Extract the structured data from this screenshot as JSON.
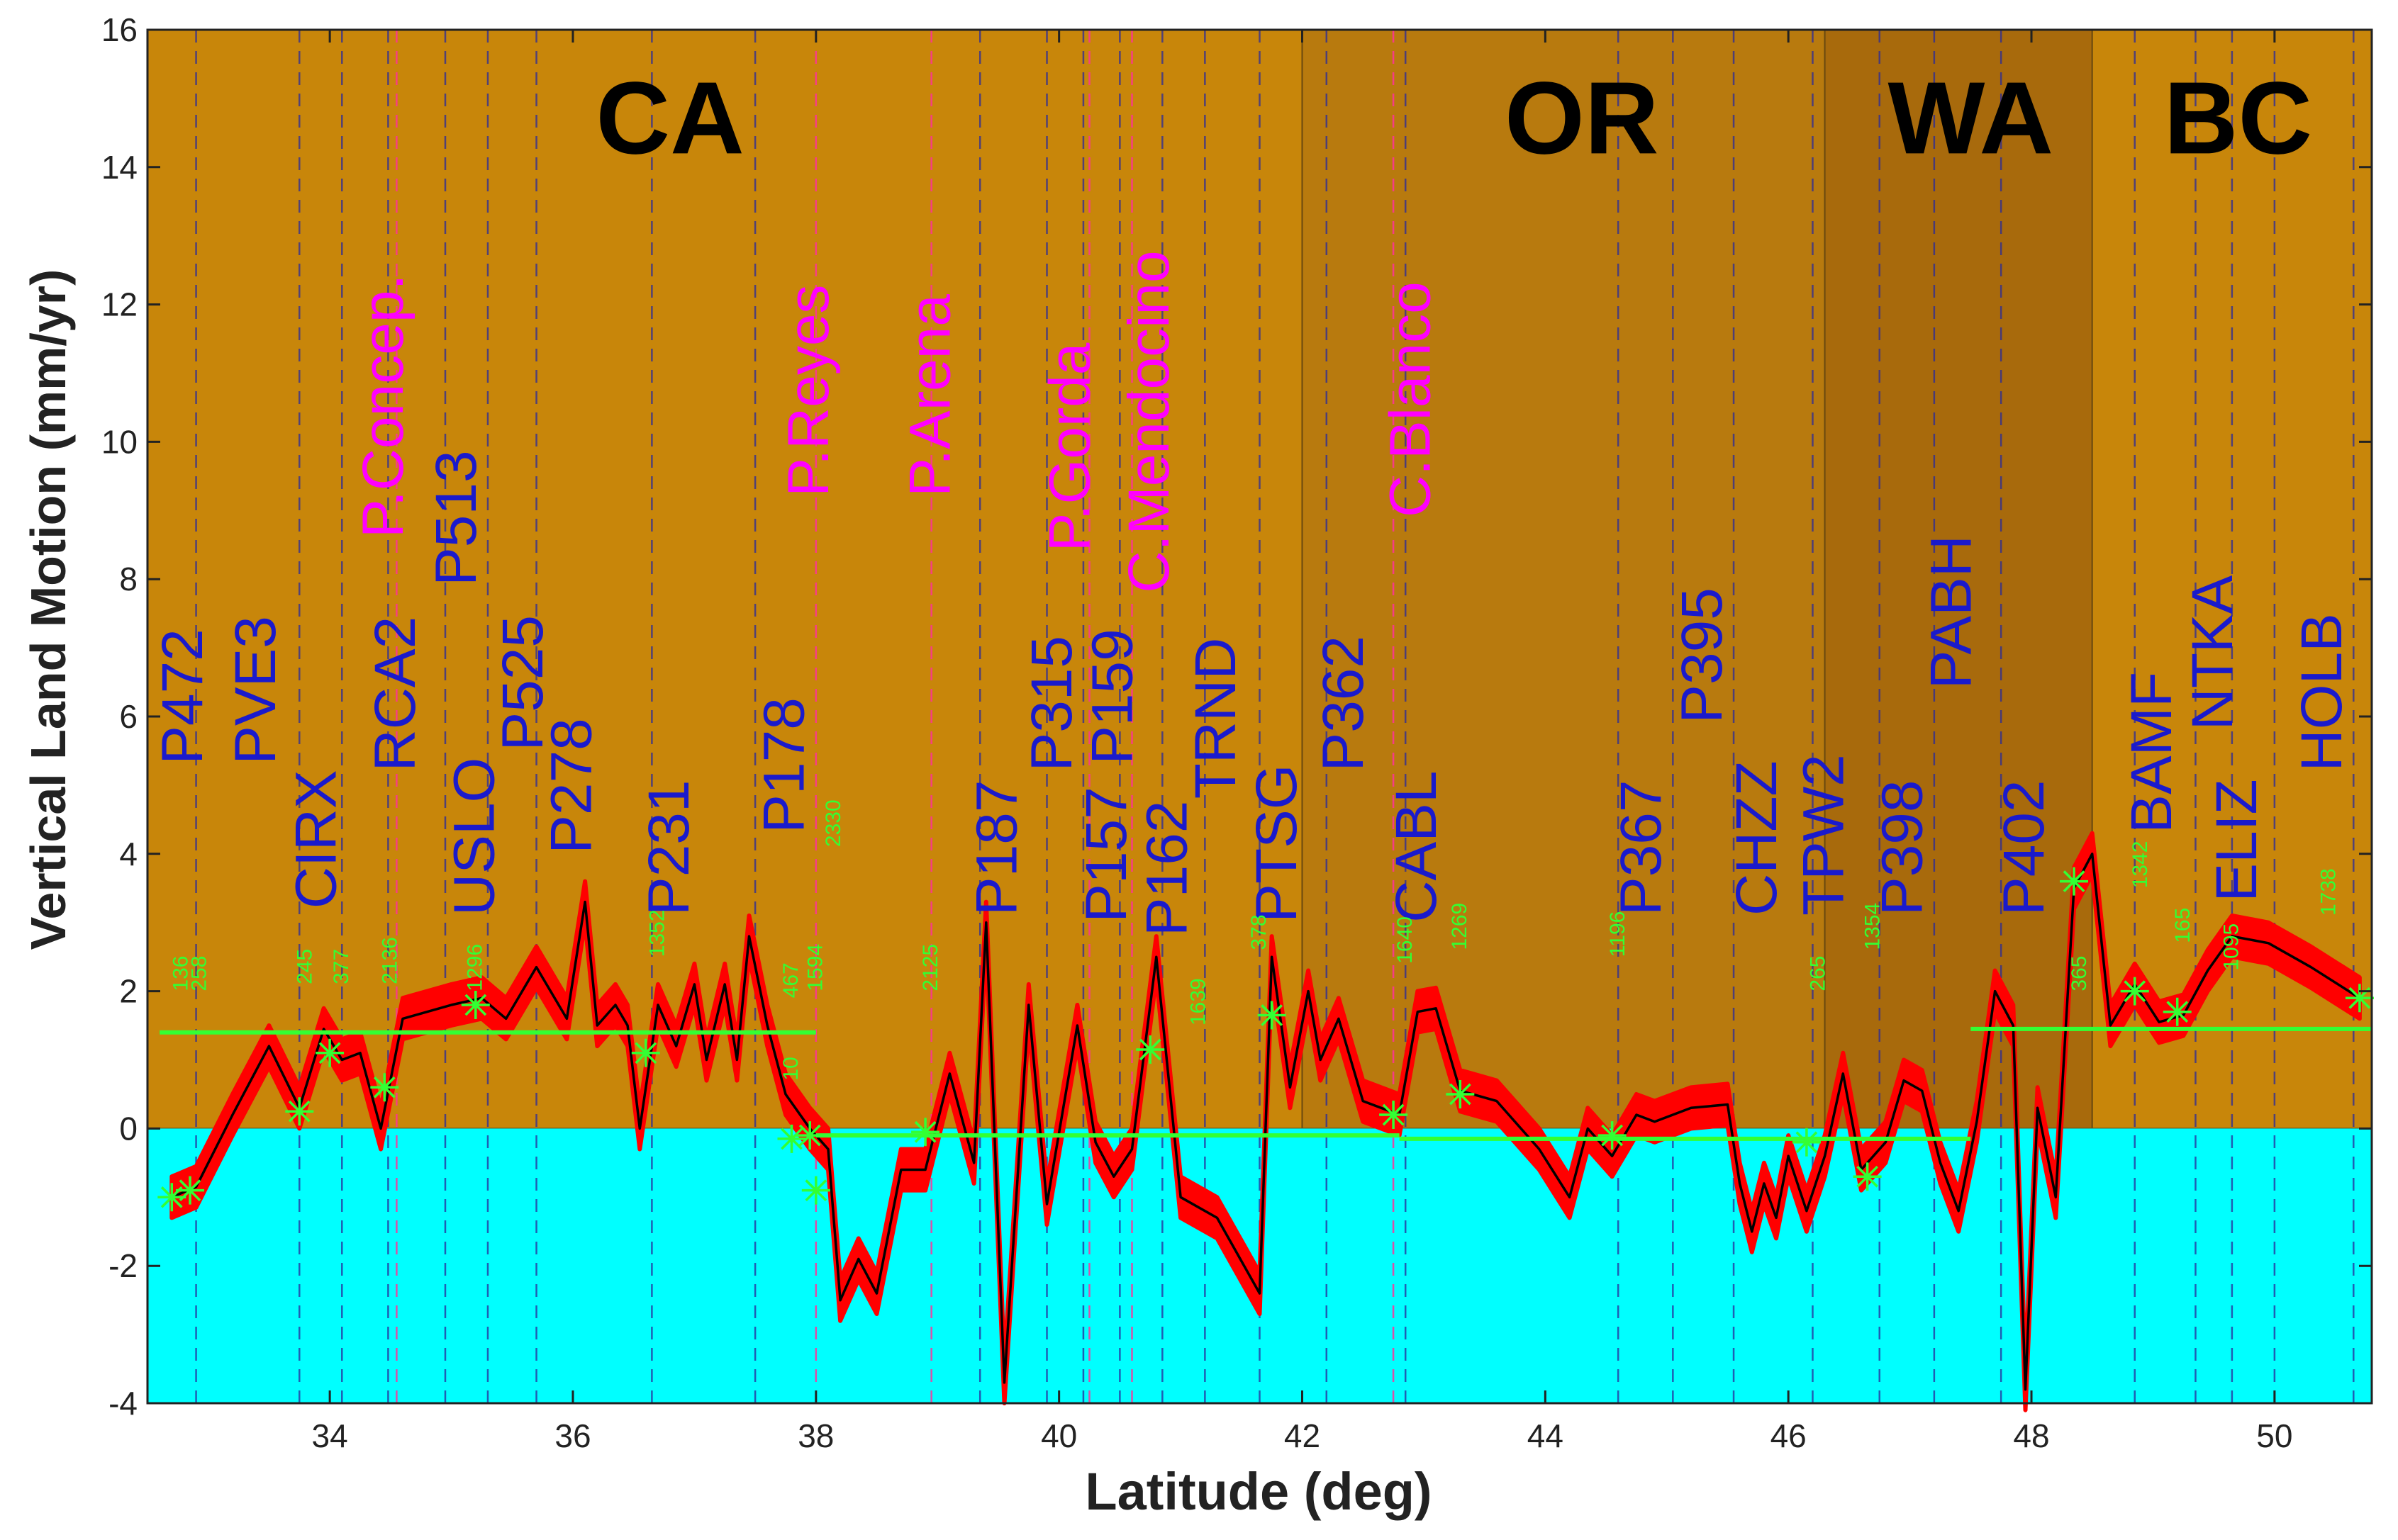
{
  "chart_data": {
    "type": "line",
    "title": "",
    "xlabel": "Latitude (deg)",
    "ylabel": "Vertical Land Motion (mm/yr)",
    "xlim": [
      32.5,
      50.8
    ],
    "ylim": [
      -4,
      16
    ],
    "xticks": [
      34,
      36,
      38,
      40,
      42,
      44,
      46,
      48,
      50
    ],
    "yticks": [
      -4,
      -2,
      0,
      2,
      4,
      6,
      8,
      10,
      12,
      14,
      16
    ],
    "colors": {
      "ca_band": "#c8860a",
      "or_band": "#b87a0e",
      "wa_band": "#a86a0c",
      "bc_band": "#c8860a",
      "below_zero": "#00ffff",
      "uncertainty": "#ff0000",
      "series_line": "#000000",
      "trend_line": "#33ff33",
      "station_label": "#1a1acc",
      "landmark_label": "#ff00ff",
      "count_label": "#33ff33"
    },
    "regions": [
      {
        "name": "CA",
        "start": 32.5,
        "end": 42.0,
        "label_x": 36.8
      },
      {
        "name": "OR",
        "start": 42.0,
        "end": 46.3,
        "label_x": 44.3
      },
      {
        "name": "WA",
        "start": 46.3,
        "end": 48.5,
        "label_x": 47.5
      },
      {
        "name": "BC",
        "start": 48.5,
        "end": 50.8,
        "label_x": 49.7
      }
    ],
    "series": [
      {
        "name": "Vertical land motion",
        "points": [
          [
            32.7,
            -1.0
          ],
          [
            32.9,
            -0.85
          ],
          [
            33.2,
            0.2
          ],
          [
            33.5,
            1.2
          ],
          [
            33.75,
            0.3
          ],
          [
            33.95,
            1.45
          ],
          [
            34.1,
            1.0
          ],
          [
            34.25,
            1.1
          ],
          [
            34.42,
            0.0
          ],
          [
            34.6,
            1.6
          ],
          [
            35.0,
            1.8
          ],
          [
            35.25,
            1.9
          ],
          [
            35.45,
            1.6
          ],
          [
            35.7,
            2.35
          ],
          [
            35.95,
            1.6
          ],
          [
            36.1,
            3.3
          ],
          [
            36.2,
            1.5
          ],
          [
            36.35,
            1.8
          ],
          [
            36.45,
            1.5
          ],
          [
            36.55,
            0.0
          ],
          [
            36.7,
            1.8
          ],
          [
            36.85,
            1.2
          ],
          [
            37.0,
            2.1
          ],
          [
            37.1,
            1.0
          ],
          [
            37.25,
            2.1
          ],
          [
            37.35,
            1.0
          ],
          [
            37.45,
            2.8
          ],
          [
            37.6,
            1.5
          ],
          [
            37.75,
            0.5
          ],
          [
            37.95,
            0.0
          ],
          [
            38.1,
            -0.3
          ],
          [
            38.2,
            -2.5
          ],
          [
            38.35,
            -1.9
          ],
          [
            38.5,
            -2.4
          ],
          [
            38.7,
            -0.6
          ],
          [
            38.9,
            -0.6
          ],
          [
            39.1,
            0.8
          ],
          [
            39.3,
            -0.5
          ],
          [
            39.4,
            3.0
          ],
          [
            39.55,
            -3.7
          ],
          [
            39.75,
            1.8
          ],
          [
            39.9,
            -1.1
          ],
          [
            40.15,
            1.5
          ],
          [
            40.3,
            -0.2
          ],
          [
            40.45,
            -0.7
          ],
          [
            40.6,
            -0.3
          ],
          [
            40.8,
            2.5
          ],
          [
            41.0,
            -1.0
          ],
          [
            41.3,
            -1.3
          ],
          [
            41.65,
            -2.4
          ],
          [
            41.75,
            2.5
          ],
          [
            41.9,
            0.6
          ],
          [
            42.05,
            2.0
          ],
          [
            42.15,
            1.0
          ],
          [
            42.3,
            1.6
          ],
          [
            42.5,
            0.4
          ],
          [
            42.8,
            0.2
          ],
          [
            42.95,
            1.7
          ],
          [
            43.1,
            1.75
          ],
          [
            43.3,
            0.55
          ],
          [
            43.6,
            0.4
          ],
          [
            43.95,
            -0.3
          ],
          [
            44.2,
            -1.0
          ],
          [
            44.35,
            0.0
          ],
          [
            44.55,
            -0.4
          ],
          [
            44.75,
            0.2
          ],
          [
            44.9,
            0.1
          ],
          [
            45.2,
            0.3
          ],
          [
            45.5,
            0.35
          ],
          [
            45.6,
            -0.8
          ],
          [
            45.7,
            -1.5
          ],
          [
            45.8,
            -0.8
          ],
          [
            45.9,
            -1.3
          ],
          [
            46.0,
            -0.4
          ],
          [
            46.15,
            -1.2
          ],
          [
            46.3,
            -0.4
          ],
          [
            46.45,
            0.8
          ],
          [
            46.6,
            -0.6
          ],
          [
            46.8,
            -0.2
          ],
          [
            46.95,
            0.7
          ],
          [
            47.1,
            0.55
          ],
          [
            47.25,
            -0.5
          ],
          [
            47.4,
            -1.2
          ],
          [
            47.55,
            0.1
          ],
          [
            47.7,
            2.0
          ],
          [
            47.85,
            1.5
          ],
          [
            47.95,
            -3.8
          ],
          [
            48.05,
            0.3
          ],
          [
            48.2,
            -1.0
          ],
          [
            48.35,
            3.5
          ],
          [
            48.5,
            4.0
          ],
          [
            48.65,
            1.5
          ],
          [
            48.85,
            2.1
          ],
          [
            49.05,
            1.55
          ],
          [
            49.25,
            1.65
          ],
          [
            49.45,
            2.3
          ],
          [
            49.65,
            2.8
          ],
          [
            49.95,
            2.7
          ],
          [
            50.3,
            2.35
          ],
          [
            50.7,
            1.9
          ]
        ]
      }
    ],
    "trend_segments": [
      {
        "x": [
          32.6,
          38.0
        ],
        "y": [
          1.4,
          1.4
        ]
      },
      {
        "x": [
          38.0,
          42.8
        ],
        "y": [
          -0.1,
          -0.1
        ]
      },
      {
        "x": [
          42.8,
          47.5
        ],
        "y": [
          -0.15,
          -0.15
        ]
      },
      {
        "x": [
          47.5,
          50.8
        ],
        "y": [
          1.45,
          1.45
        ]
      }
    ],
    "station_markers": [
      [
        32.7,
        -1.0
      ],
      [
        32.85,
        -0.9
      ],
      [
        33.75,
        0.25
      ],
      [
        34.0,
        1.1
      ],
      [
        34.45,
        0.6
      ],
      [
        35.2,
        1.8
      ],
      [
        36.6,
        1.1
      ],
      [
        37.8,
        -0.15
      ],
      [
        37.95,
        -0.1
      ],
      [
        38.0,
        -0.9
      ],
      [
        38.9,
        -0.05
      ],
      [
        40.75,
        1.15
      ],
      [
        41.75,
        1.65
      ],
      [
        42.75,
        0.2
      ],
      [
        43.3,
        0.5
      ],
      [
        44.55,
        -0.1
      ],
      [
        46.15,
        -0.2
      ],
      [
        46.65,
        -0.7
      ],
      [
        48.35,
        3.6
      ],
      [
        48.85,
        2.0
      ],
      [
        49.2,
        1.7
      ],
      [
        50.7,
        1.9
      ]
    ],
    "station_lines": [
      32.9,
      33.75,
      34.1,
      34.48,
      34.95,
      35.3,
      35.7,
      36.65,
      37.5,
      39.35,
      39.9,
      40.2,
      40.5,
      40.85,
      41.2,
      41.65,
      42.2,
      42.85,
      44.6,
      45.05,
      45.55,
      46.2,
      46.75,
      47.2,
      47.75,
      48.85,
      49.35,
      49.65,
      50.0,
      50.65
    ],
    "landmark_lines": [
      34.55,
      38.0,
      38.95,
      40.25,
      40.6,
      42.75
    ],
    "station_labels": [
      {
        "text": "P472",
        "x": 32.95,
        "y": 5.3,
        "size": 82
      },
      {
        "text": "PVE3",
        "x": 33.55,
        "y": 5.3,
        "size": 82
      },
      {
        "text": "CIRX",
        "x": 34.05,
        "y": 3.2,
        "size": 82
      },
      {
        "text": "RCA2",
        "x": 34.7,
        "y": 5.2,
        "size": 82
      },
      {
        "text": "P513",
        "x": 35.2,
        "y": 7.9,
        "size": 82
      },
      {
        "text": "USLO",
        "x": 35.35,
        "y": 3.1,
        "size": 82
      },
      {
        "text": "P525",
        "x": 35.75,
        "y": 5.5,
        "size": 82
      },
      {
        "text": "P278",
        "x": 36.15,
        "y": 4.0,
        "size": 82
      },
      {
        "text": "P231",
        "x": 36.95,
        "y": 3.1,
        "size": 82
      },
      {
        "text": "P178",
        "x": 37.9,
        "y": 4.3,
        "size": 82
      },
      {
        "text": "P187",
        "x": 39.65,
        "y": 3.1,
        "size": 82
      },
      {
        "text": "P315",
        "x": 40.1,
        "y": 5.2,
        "size": 82
      },
      {
        "text": "P159",
        "x": 40.6,
        "y": 5.3,
        "size": 82
      },
      {
        "text": "P157",
        "x": 40.55,
        "y": 3.0,
        "size": 82
      },
      {
        "text": "P162",
        "x": 41.05,
        "y": 2.8,
        "size": 82
      },
      {
        "text": "TRND",
        "x": 41.45,
        "y": 4.8,
        "size": 82
      },
      {
        "text": "PTSG",
        "x": 41.95,
        "y": 3.0,
        "size": 82
      },
      {
        "text": "P362",
        "x": 42.5,
        "y": 5.2,
        "size": 82
      },
      {
        "text": "CABL",
        "x": 43.1,
        "y": 3.0,
        "size": 82
      },
      {
        "text": "P367",
        "x": 44.95,
        "y": 3.1,
        "size": 82
      },
      {
        "text": "P395",
        "x": 45.45,
        "y": 5.9,
        "size": 82
      },
      {
        "text": "CHZZ",
        "x": 45.9,
        "y": 3.1,
        "size": 82
      },
      {
        "text": "TPW2",
        "x": 46.45,
        "y": 3.1,
        "size": 82
      },
      {
        "text": "P398",
        "x": 47.1,
        "y": 3.1,
        "size": 82
      },
      {
        "text": "PABH",
        "x": 47.5,
        "y": 6.4,
        "size": 82
      },
      {
        "text": "P402",
        "x": 48.1,
        "y": 3.1,
        "size": 82
      },
      {
        "text": "BAMF",
        "x": 49.15,
        "y": 4.3,
        "size": 82
      },
      {
        "text": "NTKA",
        "x": 49.65,
        "y": 5.8,
        "size": 82
      },
      {
        "text": "ELIZ",
        "x": 49.85,
        "y": 3.3,
        "size": 82
      },
      {
        "text": "HOLB",
        "x": 50.55,
        "y": 5.2,
        "size": 82
      }
    ],
    "landmark_labels": [
      {
        "text": "P.Concep.",
        "x": 34.6,
        "y": 8.6,
        "size": 82
      },
      {
        "text": "P.Reyes",
        "x": 38.1,
        "y": 9.2,
        "size": 82
      },
      {
        "text": "P.Arena",
        "x": 39.1,
        "y": 9.2,
        "size": 82
      },
      {
        "text": "P.Gorda",
        "x": 40.25,
        "y": 8.4,
        "size": 82
      },
      {
        "text": "C.Mendocino",
        "x": 40.9,
        "y": 7.8,
        "size": 82
      },
      {
        "text": "C.Blanco",
        "x": 43.05,
        "y": 8.9,
        "size": 82
      }
    ],
    "count_labels": [
      {
        "text": "136",
        "x": 32.83,
        "y": 2.0
      },
      {
        "text": "258",
        "x": 32.98,
        "y": 2.0
      },
      {
        "text": "245",
        "x": 33.85,
        "y": 2.1
      },
      {
        "text": "377",
        "x": 34.15,
        "y": 2.1
      },
      {
        "text": "2136",
        "x": 34.55,
        "y": 2.1
      },
      {
        "text": "1296",
        "x": 35.25,
        "y": 2.0
      },
      {
        "text": "1352",
        "x": 36.75,
        "y": 2.5
      },
      {
        "text": "10",
        "x": 37.85,
        "y": 0.7
      },
      {
        "text": "467",
        "x": 37.85,
        "y": 1.9
      },
      {
        "text": "1594",
        "x": 38.05,
        "y": 2.0
      },
      {
        "text": "2330",
        "x": 38.2,
        "y": 4.1
      },
      {
        "text": "2125",
        "x": 39.0,
        "y": 2.0
      },
      {
        "text": "1639",
        "x": 41.2,
        "y": 1.5
      },
      {
        "text": "378",
        "x": 41.7,
        "y": 2.6
      },
      {
        "text": "1640",
        "x": 42.9,
        "y": 2.4
      },
      {
        "text": "1269",
        "x": 43.35,
        "y": 2.6
      },
      {
        "text": "1196",
        "x": 44.65,
        "y": 2.5
      },
      {
        "text": "265",
        "x": 46.3,
        "y": 2.0
      },
      {
        "text": "1354",
        "x": 46.75,
        "y": 2.6
      },
      {
        "text": "365",
        "x": 48.45,
        "y": 2.0
      },
      {
        "text": "1342",
        "x": 48.95,
        "y": 3.5
      },
      {
        "text": "165",
        "x": 49.3,
        "y": 2.7
      },
      {
        "text": "1095",
        "x": 49.7,
        "y": 2.3
      },
      {
        "text": "1738",
        "x": 50.5,
        "y": 3.1
      }
    ]
  }
}
